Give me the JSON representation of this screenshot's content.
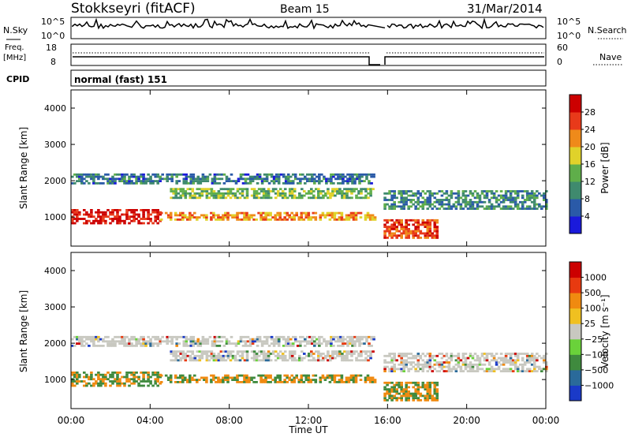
{
  "header": {
    "title": "Stokkseyri (fitACF)",
    "beam": "Beam 15",
    "date": "31/Mar/2014"
  },
  "noise_panel": {
    "left_label": "N.Sky",
    "right_label": "N.Search",
    "left_ticks": [
      "10^5",
      "10^0"
    ],
    "right_ticks": [
      "10^5",
      "10^0"
    ]
  },
  "freq_panel": {
    "left_label_1": "Freq.",
    "left_label_2": "[MHz]",
    "right_label": "Nave",
    "left_ticks": [
      "18",
      "8"
    ],
    "right_ticks": [
      "60",
      "0"
    ]
  },
  "cpid": {
    "label": "CPID",
    "value": "normal (fast) 151"
  },
  "chart_data": [
    {
      "type": "heatmap",
      "name": "power",
      "ylabel": "Slant Range [km]",
      "ylim": [
        200,
        4500
      ],
      "yticks": [
        1000,
        2000,
        3000,
        4000
      ],
      "colorbar": {
        "label": "Power [dB]",
        "ticks": [
          "4",
          "8",
          "12",
          "16",
          "20",
          "24",
          "28"
        ],
        "colors": [
          "#1a1adb",
          "#2a5aa8",
          "#3f8a6e",
          "#5fae4a",
          "#e0d22a",
          "#ef8a1a",
          "#e83a1a",
          "#cc0000"
        ]
      },
      "bands": [
        {
          "x": [
            0,
            4.5
          ],
          "range": [
            800,
            1200
          ],
          "level": 28
        },
        {
          "x": [
            4.5,
            15.3
          ],
          "range": [
            900,
            1100
          ],
          "level": 20
        },
        {
          "x": [
            5,
            15.3
          ],
          "range": [
            1500,
            1750
          ],
          "level": 12
        },
        {
          "x": [
            0,
            15.3
          ],
          "range": [
            1900,
            2200
          ],
          "level": 6
        },
        {
          "x": [
            15.8,
            24
          ],
          "range": [
            1200,
            1700
          ],
          "level": 8
        },
        {
          "x": [
            15.8,
            18.5
          ],
          "range": [
            400,
            900
          ],
          "level": 24
        }
      ]
    },
    {
      "type": "heatmap",
      "name": "velocity",
      "ylabel": "Slant Range [km]",
      "xlabel": "Time UT",
      "ylim": [
        200,
        4500
      ],
      "yticks": [
        1000,
        2000,
        3000,
        4000
      ],
      "xticks": [
        "00:00",
        "04:00",
        "08:00",
        "12:00",
        "16:00",
        "20:00",
        "00:00"
      ],
      "colorbar": {
        "label": "Velocity [m s⁻¹]",
        "ticks": [
          "1000",
          "500",
          "100",
          "25",
          "−25",
          "−100",
          "−500",
          "−1000"
        ],
        "colors": [
          "#1a3ac8",
          "#2a6a9a",
          "#3f8a3e",
          "#6ad23a",
          "#c8c8c0",
          "#f0c020",
          "#f08a10",
          "#e83a10",
          "#cc0000"
        ]
      }
    }
  ]
}
